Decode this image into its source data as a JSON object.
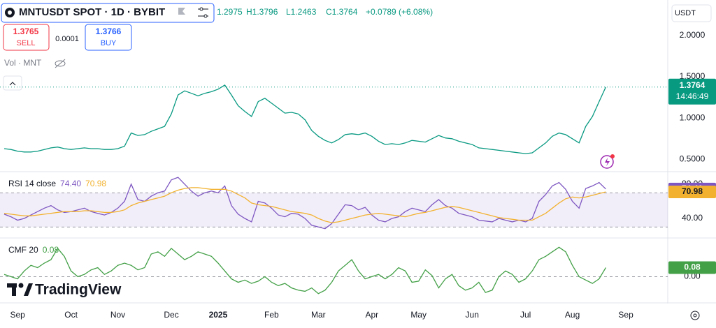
{
  "header": {
    "title": "MNTUSDT SPOT · 1D · BYBIT",
    "open": "1.2975",
    "high": "H1.3796",
    "low": "L1.2463",
    "close": "C1.3764",
    "change": "+0.0789 (+6.08%)",
    "sell_price": "1.3765",
    "sell": "SELL",
    "spread": "0.0001",
    "buy_price": "1.3766",
    "buy": "BUY",
    "volume": "Vol · MNT",
    "currency": "USDT",
    "price_label": "1.3764",
    "countdown": "14:46:49"
  },
  "watermark": "TradingView",
  "chart_data": [
    {
      "type": "line",
      "color": "#089981",
      "ylim": [
        0.36,
        2.43
      ],
      "yticks": [
        {
          "value": 2,
          "label": "2.0000"
        },
        {
          "value": 1.5,
          "label": "1.5000"
        },
        {
          "value": 1,
          "label": "1.0000"
        },
        {
          "value": 0.5,
          "label": "0.5000"
        }
      ],
      "grid": false,
      "categories": [
        null,
        null,
        "Sep",
        null,
        null,
        null,
        null,
        null,
        null,
        null,
        "Oct",
        null,
        null,
        null,
        null,
        null,
        null,
        "Nov",
        null,
        null,
        null,
        null,
        null,
        null,
        null,
        "Dec",
        null,
        null,
        null,
        null,
        null,
        null,
        "2025",
        null,
        null,
        null,
        null,
        null,
        null,
        null,
        "Feb",
        null,
        null,
        null,
        null,
        null,
        null,
        "Mar",
        null,
        null,
        null,
        null,
        null,
        null,
        null,
        "Apr",
        null,
        null,
        null,
        null,
        null,
        null,
        "May",
        null,
        null,
        null,
        null,
        null,
        null,
        null,
        "Jun",
        null,
        null,
        null,
        null,
        null,
        null,
        null,
        "Jul",
        null,
        null,
        null,
        null,
        null,
        null,
        "Aug",
        null,
        null,
        null,
        null,
        null,
        null,
        null,
        "Sep"
      ],
      "values": [
        0.63,
        0.62,
        0.6,
        0.59,
        0.59,
        0.6,
        0.62,
        0.64,
        0.65,
        0.63,
        0.62,
        0.63,
        0.64,
        0.63,
        0.63,
        0.62,
        0.62,
        0.63,
        0.66,
        0.82,
        0.79,
        0.8,
        0.84,
        0.87,
        0.9,
        1.05,
        1.28,
        1.33,
        1.3,
        1.27,
        1.3,
        1.32,
        1.35,
        1.4,
        1.28,
        1.15,
        1.08,
        1.02,
        1.2,
        1.24,
        1.18,
        1.12,
        1.06,
        1.07,
        1.05,
        0.98,
        0.85,
        0.78,
        0.73,
        0.7,
        0.74,
        0.8,
        0.81,
        0.8,
        0.82,
        0.78,
        0.72,
        0.68,
        0.69,
        0.68,
        0.7,
        0.73,
        0.72,
        0.71,
        0.75,
        0.79,
        0.76,
        0.75,
        0.72,
        0.7,
        0.68,
        0.64,
        0.63,
        0.62,
        0.61,
        0.6,
        0.59,
        0.58,
        0.57,
        0.58,
        0.64,
        0.7,
        0.78,
        0.82,
        0.8,
        0.75,
        0.7,
        0.9,
        1.02,
        1.2,
        1.3764,
        null,
        null,
        null
      ]
    },
    {
      "type": "line",
      "ylim": [
        18,
        93
      ],
      "yticks": [
        {
          "value": 40,
          "label": "40.00"
        },
        {
          "value": 80,
          "label": "80.00"
        }
      ],
      "band": [
        30,
        70
      ],
      "grid": false,
      "legend": {
        "title": "RSI 14 close",
        "values": [
          "74.40",
          "70.98"
        ]
      },
      "series": [
        {
          "color": "#7e57c2",
          "values": [
            45,
            42,
            38,
            40,
            44,
            48,
            52,
            55,
            50,
            47,
            48,
            50,
            52,
            48,
            46,
            44,
            47,
            52,
            60,
            80,
            62,
            60,
            66,
            70,
            72,
            85,
            88,
            80,
            72,
            66,
            70,
            72,
            70,
            78,
            55,
            45,
            40,
            36,
            60,
            58,
            52,
            44,
            42,
            46,
            45,
            40,
            32,
            30,
            28,
            34,
            45,
            56,
            55,
            50,
            53,
            44,
            38,
            36,
            40,
            42,
            48,
            52,
            50,
            48,
            56,
            62,
            55,
            52,
            46,
            44,
            42,
            38,
            37,
            36,
            40,
            38,
            36,
            38,
            36,
            40,
            60,
            68,
            78,
            82,
            74,
            60,
            52,
            75,
            78,
            82,
            74.4,
            null,
            null,
            null
          ]
        },
        {
          "color": "#f2b230",
          "values": [
            46,
            45,
            44,
            43,
            43,
            44,
            45,
            46,
            47,
            48,
            48,
            48,
            49,
            49,
            48,
            47,
            47,
            48,
            50,
            55,
            58,
            60,
            62,
            64,
            66,
            70,
            73,
            75,
            76,
            76,
            75,
            74,
            74,
            74,
            72,
            68,
            64,
            58,
            56,
            55,
            54,
            52,
            50,
            48,
            47,
            46,
            44,
            40,
            37,
            35,
            36,
            38,
            40,
            42,
            44,
            45,
            46,
            45,
            44,
            43,
            42,
            44,
            46,
            47,
            49,
            51,
            53,
            54,
            53,
            51,
            49,
            47,
            45,
            43,
            41,
            40,
            39,
            38,
            38,
            38,
            42,
            46,
            52,
            58,
            63,
            65,
            64,
            65,
            67,
            69,
            70.98,
            null,
            null,
            null
          ]
        }
      ]
    },
    {
      "type": "line",
      "ylim": [
        -0.22,
        0.33
      ],
      "yticks": [
        {
          "value": 0,
          "label": "0.00"
        }
      ],
      "grid": true,
      "legend": {
        "title": "CMF 20",
        "values": [
          "0.08"
        ]
      },
      "series": [
        {
          "color": "#43a047",
          "values": [
            0.02,
            0.0,
            -0.02,
            0.05,
            0.1,
            0.08,
            0.12,
            0.15,
            0.25,
            0.18,
            0.05,
            0.0,
            0.02,
            0.06,
            0.08,
            0.02,
            0.05,
            0.1,
            0.12,
            0.1,
            0.06,
            0.08,
            0.2,
            0.22,
            0.18,
            0.25,
            0.2,
            0.15,
            0.18,
            0.22,
            0.2,
            0.18,
            0.12,
            0.05,
            -0.02,
            -0.05,
            -0.03,
            -0.06,
            -0.04,
            0.0,
            -0.05,
            -0.08,
            -0.06,
            -0.1,
            -0.12,
            -0.13,
            -0.1,
            -0.15,
            -0.12,
            -0.05,
            0.05,
            0.1,
            0.15,
            0.05,
            -0.02,
            0.0,
            0.02,
            -0.02,
            0.02,
            0.08,
            0.05,
            -0.05,
            -0.04,
            0.06,
            0.01,
            -0.1,
            -0.02,
            0.02,
            -0.08,
            -0.12,
            -0.1,
            -0.05,
            -0.14,
            -0.12,
            0.0,
            0.05,
            0.02,
            -0.05,
            -0.02,
            0.05,
            0.15,
            0.18,
            0.22,
            0.26,
            0.22,
            0.1,
            0.0,
            -0.03,
            -0.06,
            -0.02,
            0.08,
            null,
            null,
            null
          ]
        }
      ]
    }
  ]
}
